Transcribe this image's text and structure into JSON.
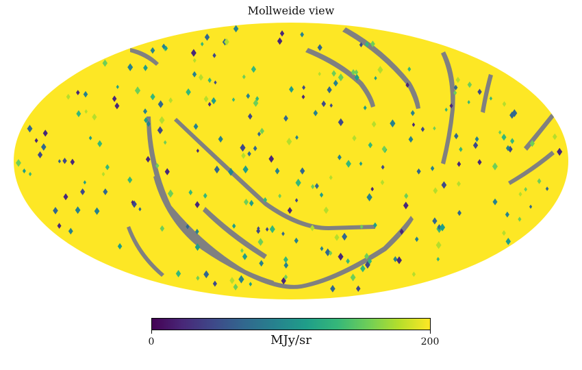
{
  "title": "Mollweide view",
  "projection": "mollweide",
  "map": {
    "fill_color": "#fde725",
    "masked_color": "#808080",
    "description_unseen": "",
    "pixel_value_note": ""
  },
  "colorbar": {
    "colormap": "viridis",
    "stops": [
      "#440154",
      "#482878",
      "#3e4989",
      "#31688e",
      "#26828e",
      "#1f9e89",
      "#35b779",
      "#6ece58",
      "#b5de2b",
      "#fde725"
    ],
    "min_label": "0",
    "max_label": "200",
    "unit": "MJy/sr",
    "min": 0,
    "max": 200
  }
}
